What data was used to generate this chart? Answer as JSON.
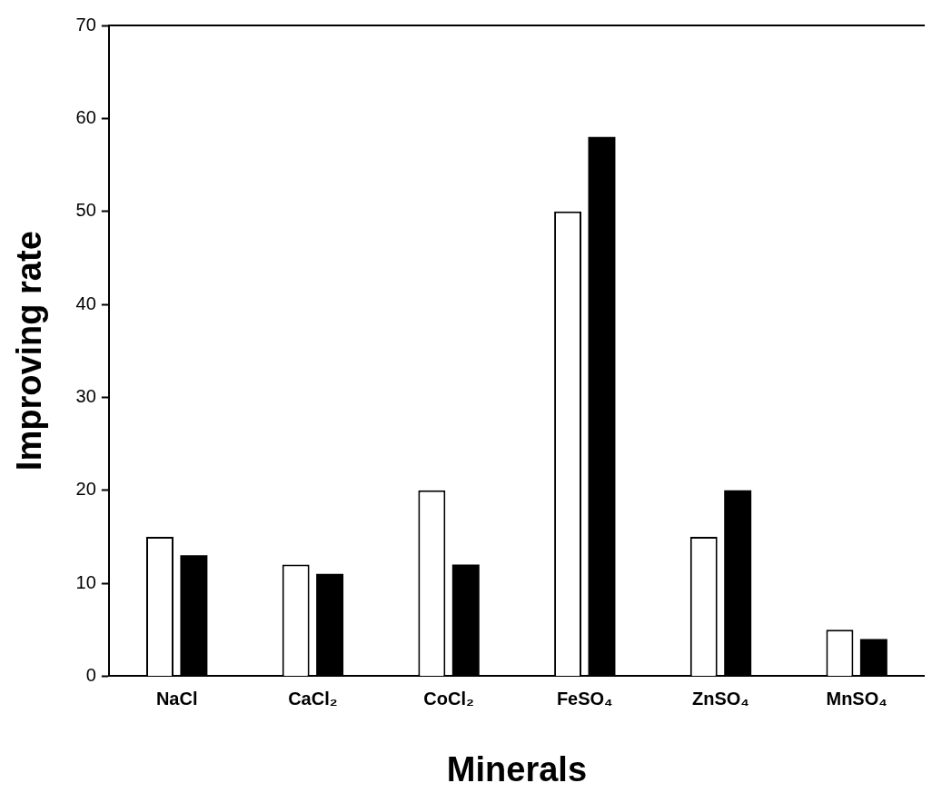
{
  "chart_data": {
    "type": "bar",
    "xlabel": "Minerals",
    "ylabel": "Improving rate",
    "categories": [
      "NaCl",
      "CaCl₂",
      "CoCl₂",
      "FeSO₄",
      "ZnSO₄",
      "MnSO₄"
    ],
    "series": [
      {
        "color": "#ffffff",
        "values": [
          15,
          12,
          20,
          50,
          15,
          5
        ]
      },
      {
        "color": "#000000",
        "values": [
          13,
          11,
          12,
          58,
          20,
          4
        ]
      }
    ],
    "ylim": [
      0,
      70
    ],
    "yticks": [
      0,
      10,
      20,
      30,
      40,
      50,
      60,
      70
    ],
    "grid": false,
    "legend": false
  }
}
